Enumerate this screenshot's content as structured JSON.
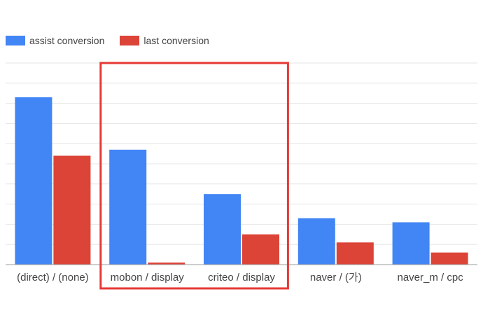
{
  "chart_data": {
    "type": "bar",
    "categories": [
      "(direct) / (none)",
      "mobon / display",
      "criteo / display",
      "naver / (가)",
      "naver_m / cpc"
    ],
    "series": [
      {
        "name": "assist conversion",
        "color": "#4285f4",
        "values": [
          83,
          57,
          35,
          23,
          21
        ]
      },
      {
        "name": "last conversion",
        "color": "#db4437",
        "values": [
          54,
          1,
          15,
          11,
          6
        ]
      }
    ],
    "ylim": [
      0,
      100
    ],
    "grid": true,
    "legend": "top-left",
    "highlight": {
      "from_category": 1,
      "to_category": 2,
      "color": "#e53935"
    }
  }
}
